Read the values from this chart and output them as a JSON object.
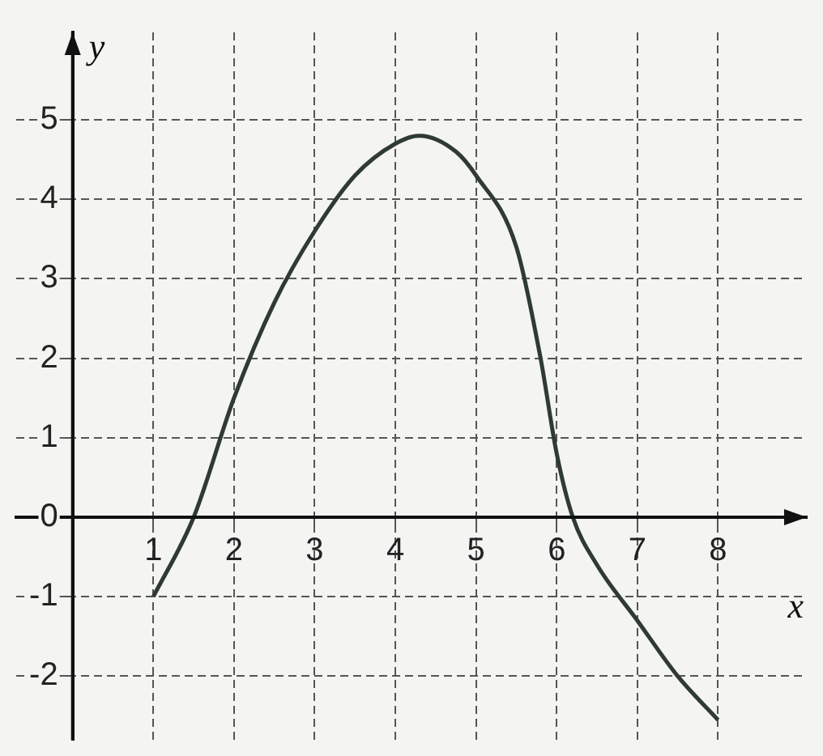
{
  "chart_data": {
    "type": "line",
    "xlabel": "x",
    "ylabel": "y",
    "xlim": [
      -0.7,
      9.1
    ],
    "ylim": [
      -2.8,
      6.1
    ],
    "xticks": [
      1,
      2,
      3,
      4,
      5,
      6,
      7,
      8
    ],
    "yticks": [
      -2,
      -1,
      0,
      1,
      2,
      3,
      4,
      5
    ],
    "grid": true,
    "marker": "none",
    "line_style": "solid",
    "series": [
      {
        "color": "#2f3a33",
        "x": [
          1,
          1.5,
          2,
          2.5,
          3,
          3.5,
          4,
          4.3,
          4.75,
          5,
          5.5,
          5.8,
          6,
          6.2,
          6.5,
          7,
          7.5,
          8
        ],
        "values": [
          -1,
          0,
          1.5,
          2.7,
          3.6,
          4.3,
          4.7,
          4.8,
          4.6,
          4.3,
          3.4,
          2,
          0.8,
          0,
          -0.6,
          -1.3,
          -2,
          -2.55
        ]
      }
    ]
  }
}
